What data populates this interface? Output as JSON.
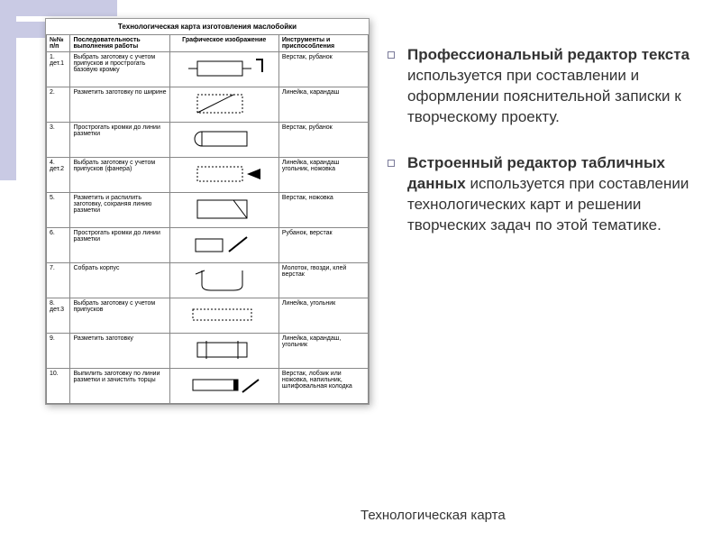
{
  "decoration": {
    "color": "#c9cae4"
  },
  "table_title": "Технологическая карта изготовления маслобойки",
  "columns": [
    "№№ п/п",
    "Последовательность выполнения работы",
    "Графическое изображение",
    "Инструменты и приспособления"
  ],
  "rows": [
    {
      "num": "1. дет.1",
      "seq": "Выбрать заготовку с учетом припусков и прострогать базовую кромку",
      "tools": "Верстак, рубанок"
    },
    {
      "num": "2.",
      "seq": "Разметить заготовку по ширине",
      "tools": "Линейка, карандаш"
    },
    {
      "num": "3.",
      "seq": "Прострогать кромки до линии разметки",
      "tools": "Верстак, рубанок"
    },
    {
      "num": "4. дет.2",
      "seq": "Выбрать заготовку с учетом припусков (фанера)",
      "tools": "Линейка, карандаш угольник, ножовка"
    },
    {
      "num": "5.",
      "seq": "Разметить и распилить заготовку, сохраняя линию разметки",
      "tools": "Верстак, ножовка"
    },
    {
      "num": "6.",
      "seq": "Прострогать кромки до линии разметки",
      "tools": "Рубанок, верстак"
    },
    {
      "num": "7.",
      "seq": "Собрать корпус",
      "tools": "Молоток, гвозди, клей верстак"
    },
    {
      "num": "8. дет.3",
      "seq": "Выбрать заготовку с учетом припусков",
      "tools": "Линейка, угольник"
    },
    {
      "num": "9.",
      "seq": "Разметить заготовку",
      "tools": "Линейка, карандаш, угольник"
    },
    {
      "num": "10.",
      "seq": "Выпилить заготовку по линии разметки и зачистить торцы",
      "tools": "Верстак, лобзик или ножовка, напильник, шлифовальная колодка"
    }
  ],
  "bullets": [
    {
      "bold": "Профессиональный редактор текста",
      "rest": " используется при составлении и оформлении пояснительной записки к творческому проекту."
    },
    {
      "bold": "Встроенный редактор табличных данных",
      "rest": " используется при составлении технологических карт и решении творческих задач по этой тематике."
    }
  ],
  "caption": "Технологическая карта",
  "svg_defs": {
    "stroke": "#000",
    "stroke_width": 1
  }
}
